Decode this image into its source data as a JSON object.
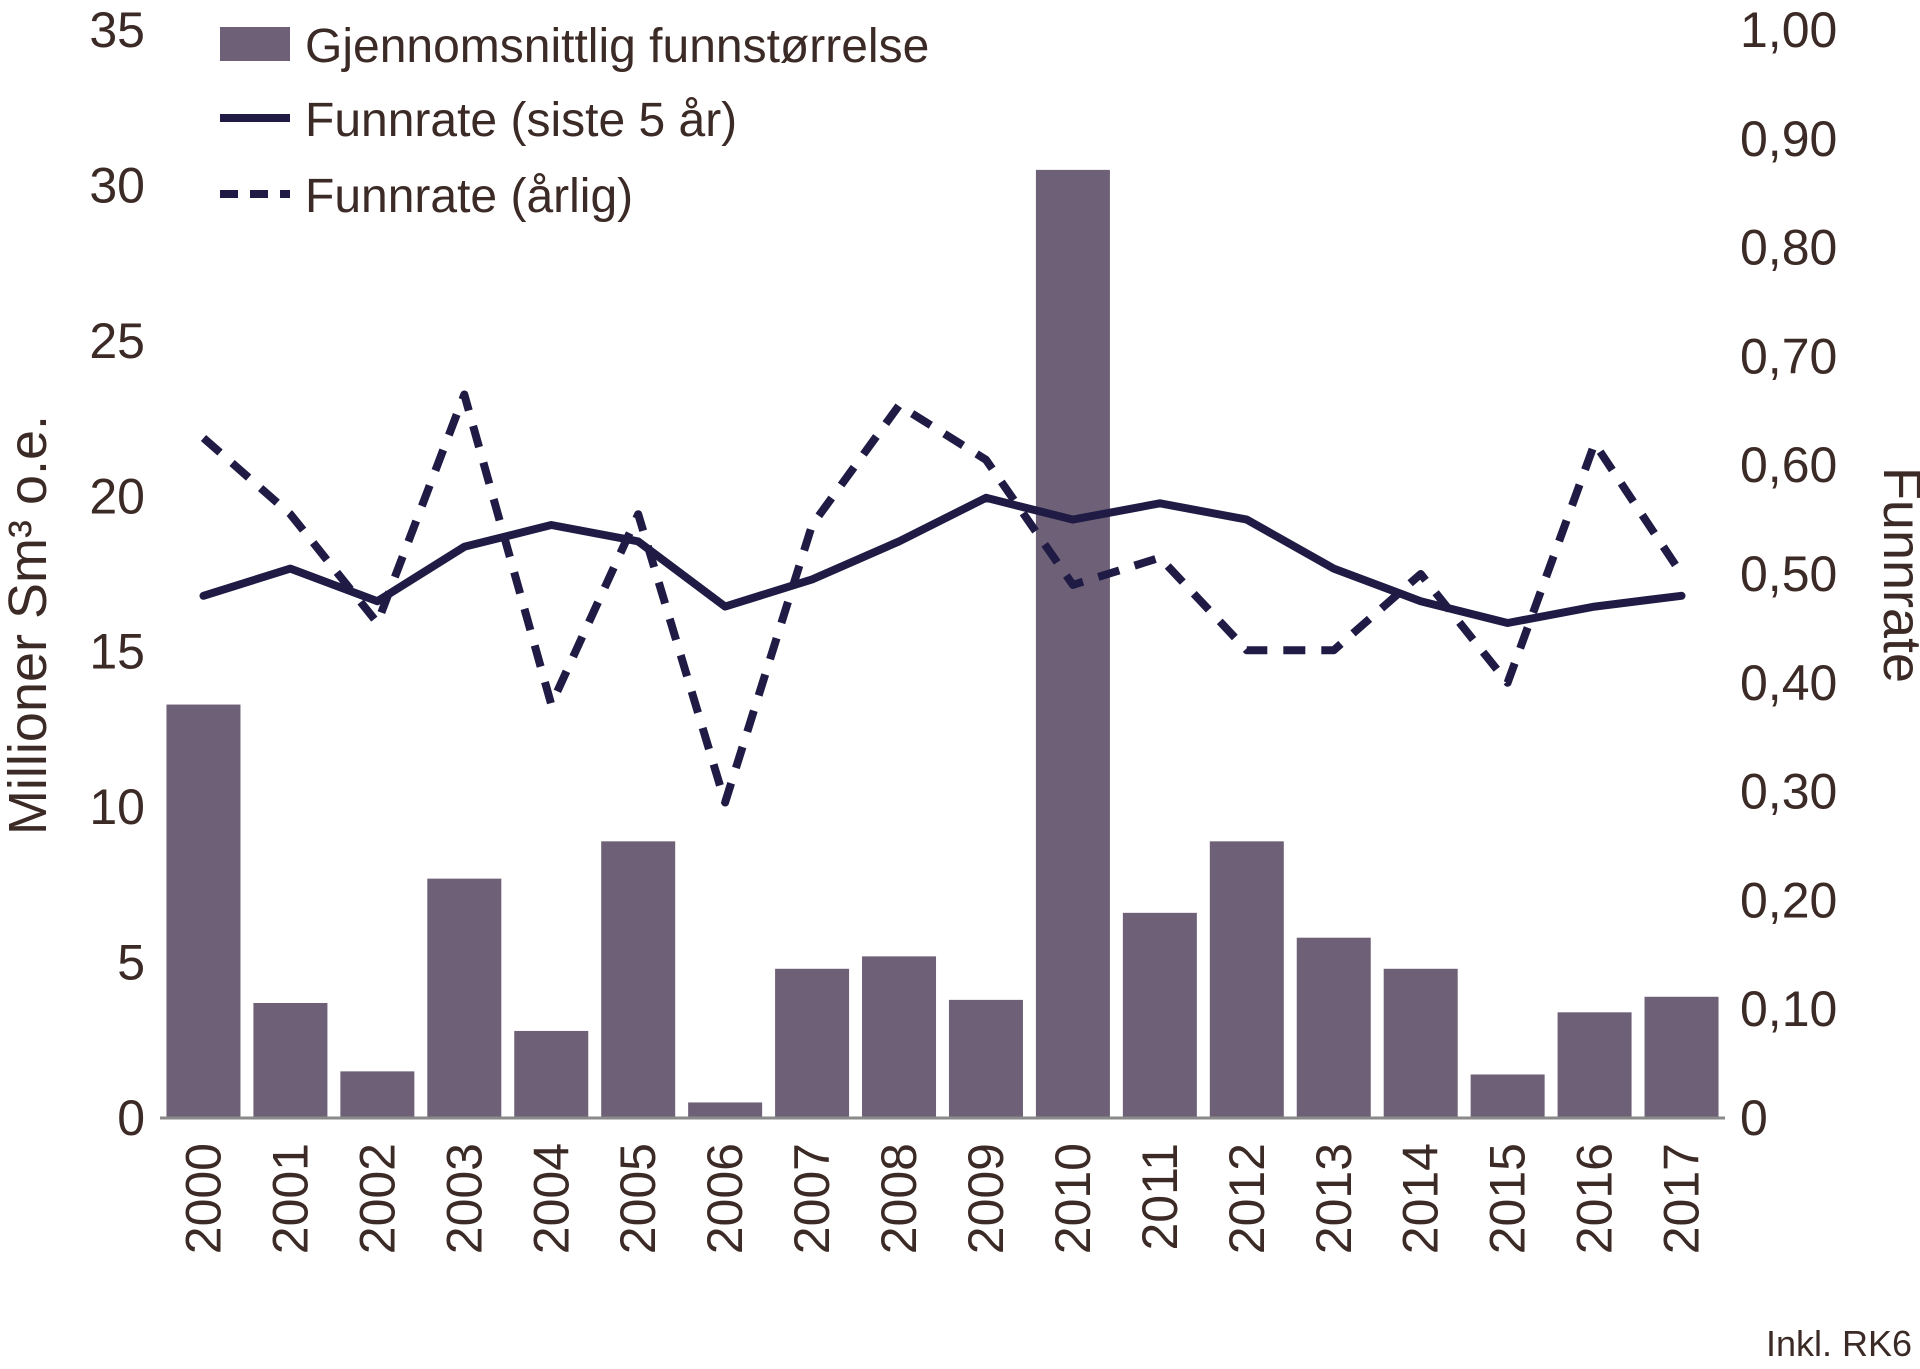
{
  "chart_data": {
    "type": "bar",
    "categories": [
      "2000",
      "2001",
      "2002",
      "2003",
      "2004",
      "2005",
      "2006",
      "2007",
      "2008",
      "2009",
      "2010",
      "2011",
      "2012",
      "2013",
      "2014",
      "2015",
      "2016",
      "2017"
    ],
    "series": [
      {
        "name": "Gjennomsnittlig funnstørrelse",
        "type": "bar",
        "axis": "left",
        "color": "#6e6077",
        "values": [
          13.3,
          3.7,
          1.5,
          7.7,
          2.8,
          8.9,
          0.5,
          4.8,
          5.2,
          3.8,
          30.5,
          6.6,
          8.9,
          5.8,
          4.8,
          1.4,
          3.4,
          3.9
        ]
      },
      {
        "name": "Funnrate (siste 5 år)",
        "type": "line",
        "axis": "right",
        "style": "solid",
        "color": "#1f1b45",
        "values": [
          0.48,
          0.505,
          0.475,
          0.525,
          0.545,
          0.53,
          0.47,
          0.495,
          0.53,
          0.57,
          0.55,
          0.565,
          0.55,
          0.505,
          0.475,
          0.455,
          0.47,
          0.48
        ]
      },
      {
        "name": "Funnrate (årlig)",
        "type": "line",
        "axis": "right",
        "style": "dashed",
        "color": "#1f1b45",
        "values": [
          0.625,
          0.555,
          0.455,
          0.665,
          0.38,
          0.555,
          0.29,
          0.545,
          0.655,
          0.605,
          0.49,
          0.515,
          0.43,
          0.43,
          0.5,
          0.4,
          0.62,
          0.5
        ]
      }
    ],
    "y_left": {
      "label": "Millioner Sm³ o.e.",
      "range": [
        0,
        35
      ],
      "ticks": [
        0,
        5,
        10,
        15,
        20,
        25,
        30,
        35
      ],
      "tick_labels": [
        "0",
        "5",
        "10",
        "15",
        "20",
        "25",
        "30",
        "35"
      ]
    },
    "y_right": {
      "label": "Funnrate",
      "range": [
        0,
        1
      ],
      "ticks": [
        0,
        0.1,
        0.2,
        0.3,
        0.4,
        0.5,
        0.6,
        0.7,
        0.8,
        0.9,
        1.0
      ],
      "tick_labels": [
        "0",
        "0,10",
        "0,20",
        "0,30",
        "0,40",
        "0,50",
        "0,60",
        "0,70",
        "0,80",
        "0,90",
        "1,00"
      ]
    },
    "legend": {
      "placement": "top-left",
      "items": [
        {
          "label": "Gjennomsnittlig funnstørrelse",
          "kind": "bar"
        },
        {
          "label": "Funnrate (siste 5 år)",
          "kind": "solid"
        },
        {
          "label": "Funnrate (årlig)",
          "kind": "dashed"
        }
      ]
    },
    "note": "Inkl. RK6",
    "grid": false,
    "axis_color": "#8a8a8a",
    "text_color": "#3b2a25"
  }
}
